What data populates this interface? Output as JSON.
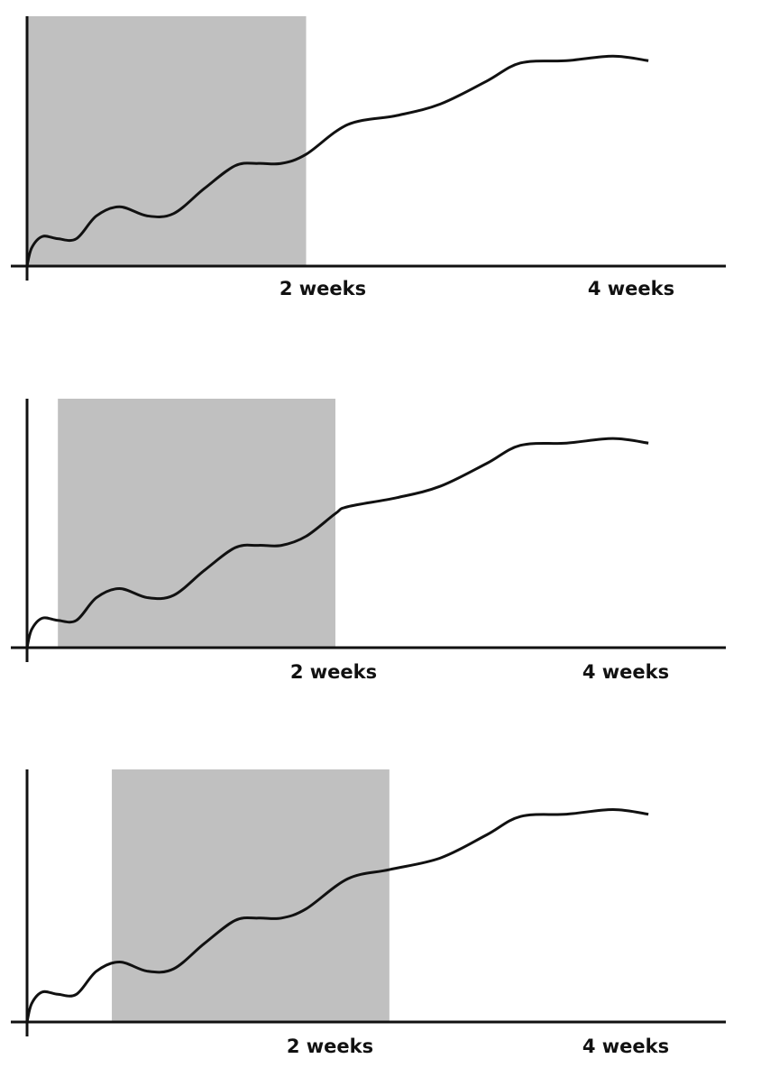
{
  "chart_data": [
    {
      "type": "line",
      "xlabel": "",
      "ylabel": "",
      "xlim": [
        0,
        4
      ],
      "ylim": [
        0,
        1
      ],
      "x_ticks": [
        {
          "value": 2,
          "label": "2 weeks"
        },
        {
          "value": 4,
          "label": "4 weeks"
        }
      ],
      "shaded_window": [
        0,
        1.81
      ],
      "series": [
        {
          "x": [
            0,
            0.03,
            0.1,
            0.2,
            0.32,
            0.45,
            0.6,
            0.78,
            0.95,
            1.15,
            1.35,
            1.5,
            1.65,
            1.81,
            2.08,
            2.4,
            2.68,
            2.98,
            3.2,
            3.5,
            3.8,
            4.03
          ],
          "values": [
            0,
            0.08,
            0.13,
            0.12,
            0.12,
            0.22,
            0.26,
            0.22,
            0.23,
            0.34,
            0.44,
            0.45,
            0.45,
            0.49,
            0.62,
            0.66,
            0.71,
            0.81,
            0.89,
            0.9,
            0.92,
            0.9
          ]
        }
      ]
    },
    {
      "type": "line",
      "xlabel": "",
      "ylabel": "",
      "xlim": [
        0,
        4
      ],
      "ylim": [
        0,
        1
      ],
      "x_ticks": [
        {
          "value": 2,
          "label": "2 weeks"
        },
        {
          "value": 4,
          "label": "4 weeks"
        }
      ],
      "shaded_window": [
        0.2,
        2.0
      ],
      "series": [
        {
          "x": [
            0,
            0.03,
            0.1,
            0.2,
            0.32,
            0.45,
            0.6,
            0.78,
            0.95,
            1.15,
            1.35,
            1.5,
            1.65,
            1.81,
            2.0,
            2.08,
            2.4,
            2.68,
            2.98,
            3.2,
            3.5,
            3.8,
            4.03
          ],
          "values": [
            0,
            0.08,
            0.13,
            0.12,
            0.12,
            0.22,
            0.26,
            0.22,
            0.23,
            0.34,
            0.44,
            0.45,
            0.45,
            0.49,
            0.59,
            0.62,
            0.66,
            0.71,
            0.81,
            0.89,
            0.9,
            0.92,
            0.9
          ]
        }
      ]
    },
    {
      "type": "line",
      "xlabel": "",
      "ylabel": "",
      "xlim": [
        0,
        4
      ],
      "ylim": [
        0,
        1
      ],
      "x_ticks": [
        {
          "value": 2,
          "label": "2 weeks"
        },
        {
          "value": 4,
          "label": "4 weeks"
        }
      ],
      "shaded_window": [
        0.55,
        2.35
      ],
      "series": [
        {
          "x": [
            0,
            0.03,
            0.1,
            0.2,
            0.32,
            0.45,
            0.6,
            0.78,
            0.95,
            1.15,
            1.35,
            1.5,
            1.65,
            1.81,
            2.08,
            2.35,
            2.68,
            2.98,
            3.2,
            3.5,
            3.8,
            4.03
          ],
          "values": [
            0,
            0.08,
            0.13,
            0.12,
            0.12,
            0.22,
            0.26,
            0.22,
            0.23,
            0.34,
            0.44,
            0.45,
            0.45,
            0.49,
            0.62,
            0.66,
            0.71,
            0.81,
            0.89,
            0.9,
            0.92,
            0.9
          ]
        }
      ]
    }
  ]
}
